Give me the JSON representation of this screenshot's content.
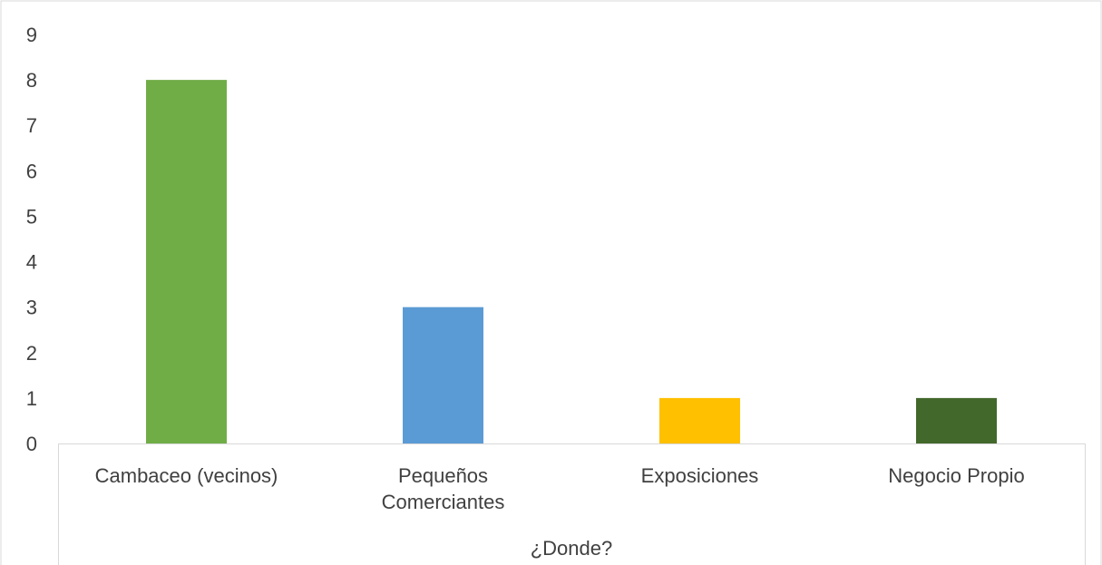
{
  "chart_data": {
    "type": "bar",
    "categories": [
      [
        "Cambaceo (vecinos)"
      ],
      [
        "Pequeños",
        "Comerciantes"
      ],
      [
        "Exposiciones"
      ],
      [
        "Negocio Propio"
      ]
    ],
    "values": [
      8,
      3,
      1,
      1
    ],
    "colors": [
      "#70AD47",
      "#5B9BD5",
      "#FFC000",
      "#43682B"
    ],
    "ylim": [
      0,
      9
    ],
    "yticks": [
      "0",
      "1",
      "2",
      "3",
      "4",
      "5",
      "6",
      "7",
      "8",
      "9"
    ],
    "group_label": "¿Donde?",
    "grid": false,
    "legend": "none"
  }
}
